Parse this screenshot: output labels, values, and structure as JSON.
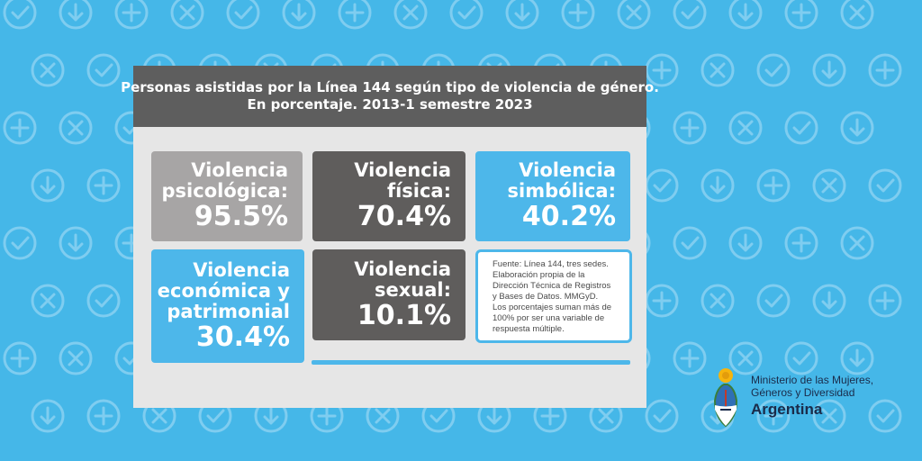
{
  "colors": {
    "background": "#45b7e8",
    "panel": "#e6e6e6",
    "header": "#5e5e5e",
    "tile_gray": "#a7a5a5",
    "tile_dark": "#5f5d5c",
    "tile_blue": "#4db7ea",
    "text_dark": "#1a2b4a"
  },
  "header": {
    "line1": "Personas asistidas por la Línea 144 según tipo de violencia de género.",
    "line2": "En porcentaje. 2013-1 semestre 2023"
  },
  "chart_data": {
    "type": "table",
    "title": "Personas asistidas por la Línea 144 según tipo de violencia de género. En porcentaje. 2013-1 semestre 2023",
    "unit": "%",
    "items": [
      {
        "label_lines": [
          "Violencia",
          "psicológica:"
        ],
        "value": 95.5,
        "display": "95.5%",
        "color": "#a7a5a5"
      },
      {
        "label_lines": [
          "Violencia",
          "física:"
        ],
        "value": 70.4,
        "display": "70.4%",
        "color": "#5f5d5c"
      },
      {
        "label_lines": [
          "Violencia",
          "simbólica:"
        ],
        "value": 40.2,
        "display": "40.2%",
        "color": "#4db7ea"
      },
      {
        "label_lines": [
          "Violencia",
          "económica y",
          "patrimonial"
        ],
        "value": 30.4,
        "display": "30.4%",
        "color": "#4db7ea"
      },
      {
        "label_lines": [
          "Violencia",
          "sexual:"
        ],
        "value": 10.1,
        "display": "10.1%",
        "color": "#5f5d5c"
      }
    ]
  },
  "source_note": {
    "lines": [
      "Fuente: Línea 144, tres sedes.",
      "Elaboración propia de la",
      "Dirección Técnica de Registros",
      "y Bases de Datos. MMGyD.",
      "Los porcentajes suman más de",
      "100% por ser una variable de",
      "respuesta múltiple."
    ]
  },
  "ministry": {
    "line1": "Ministerio de las Mujeres,",
    "line2": "Géneros y Diversidad",
    "line3": "Argentina",
    "emblem_icon": "argentina-coat-of-arms-icon"
  },
  "background_icons": [
    "check-circle-icon",
    "down-arrow-circle-icon",
    "plus-circle-icon",
    "x-circle-icon"
  ]
}
